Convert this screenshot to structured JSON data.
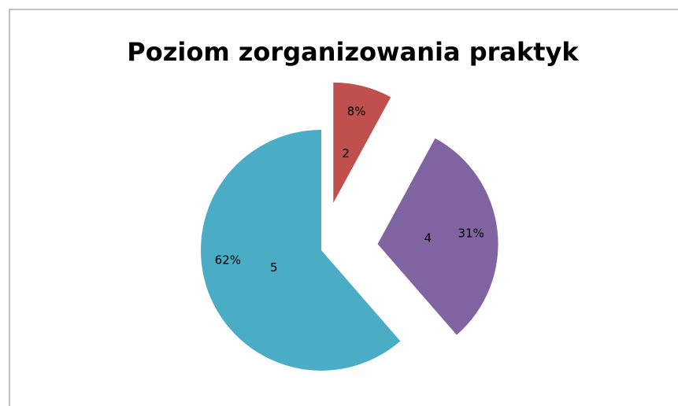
{
  "chart_data": {
    "type": "pie",
    "title": "Poziom zorganizowania praktyk",
    "categories": [
      "2",
      "4",
      "5"
    ],
    "values": [
      8,
      31,
      62
    ],
    "value_labels": [
      "8%",
      "31%",
      "62%"
    ],
    "colors": [
      "#c0504d",
      "#8064a2",
      "#4bacc6"
    ]
  }
}
